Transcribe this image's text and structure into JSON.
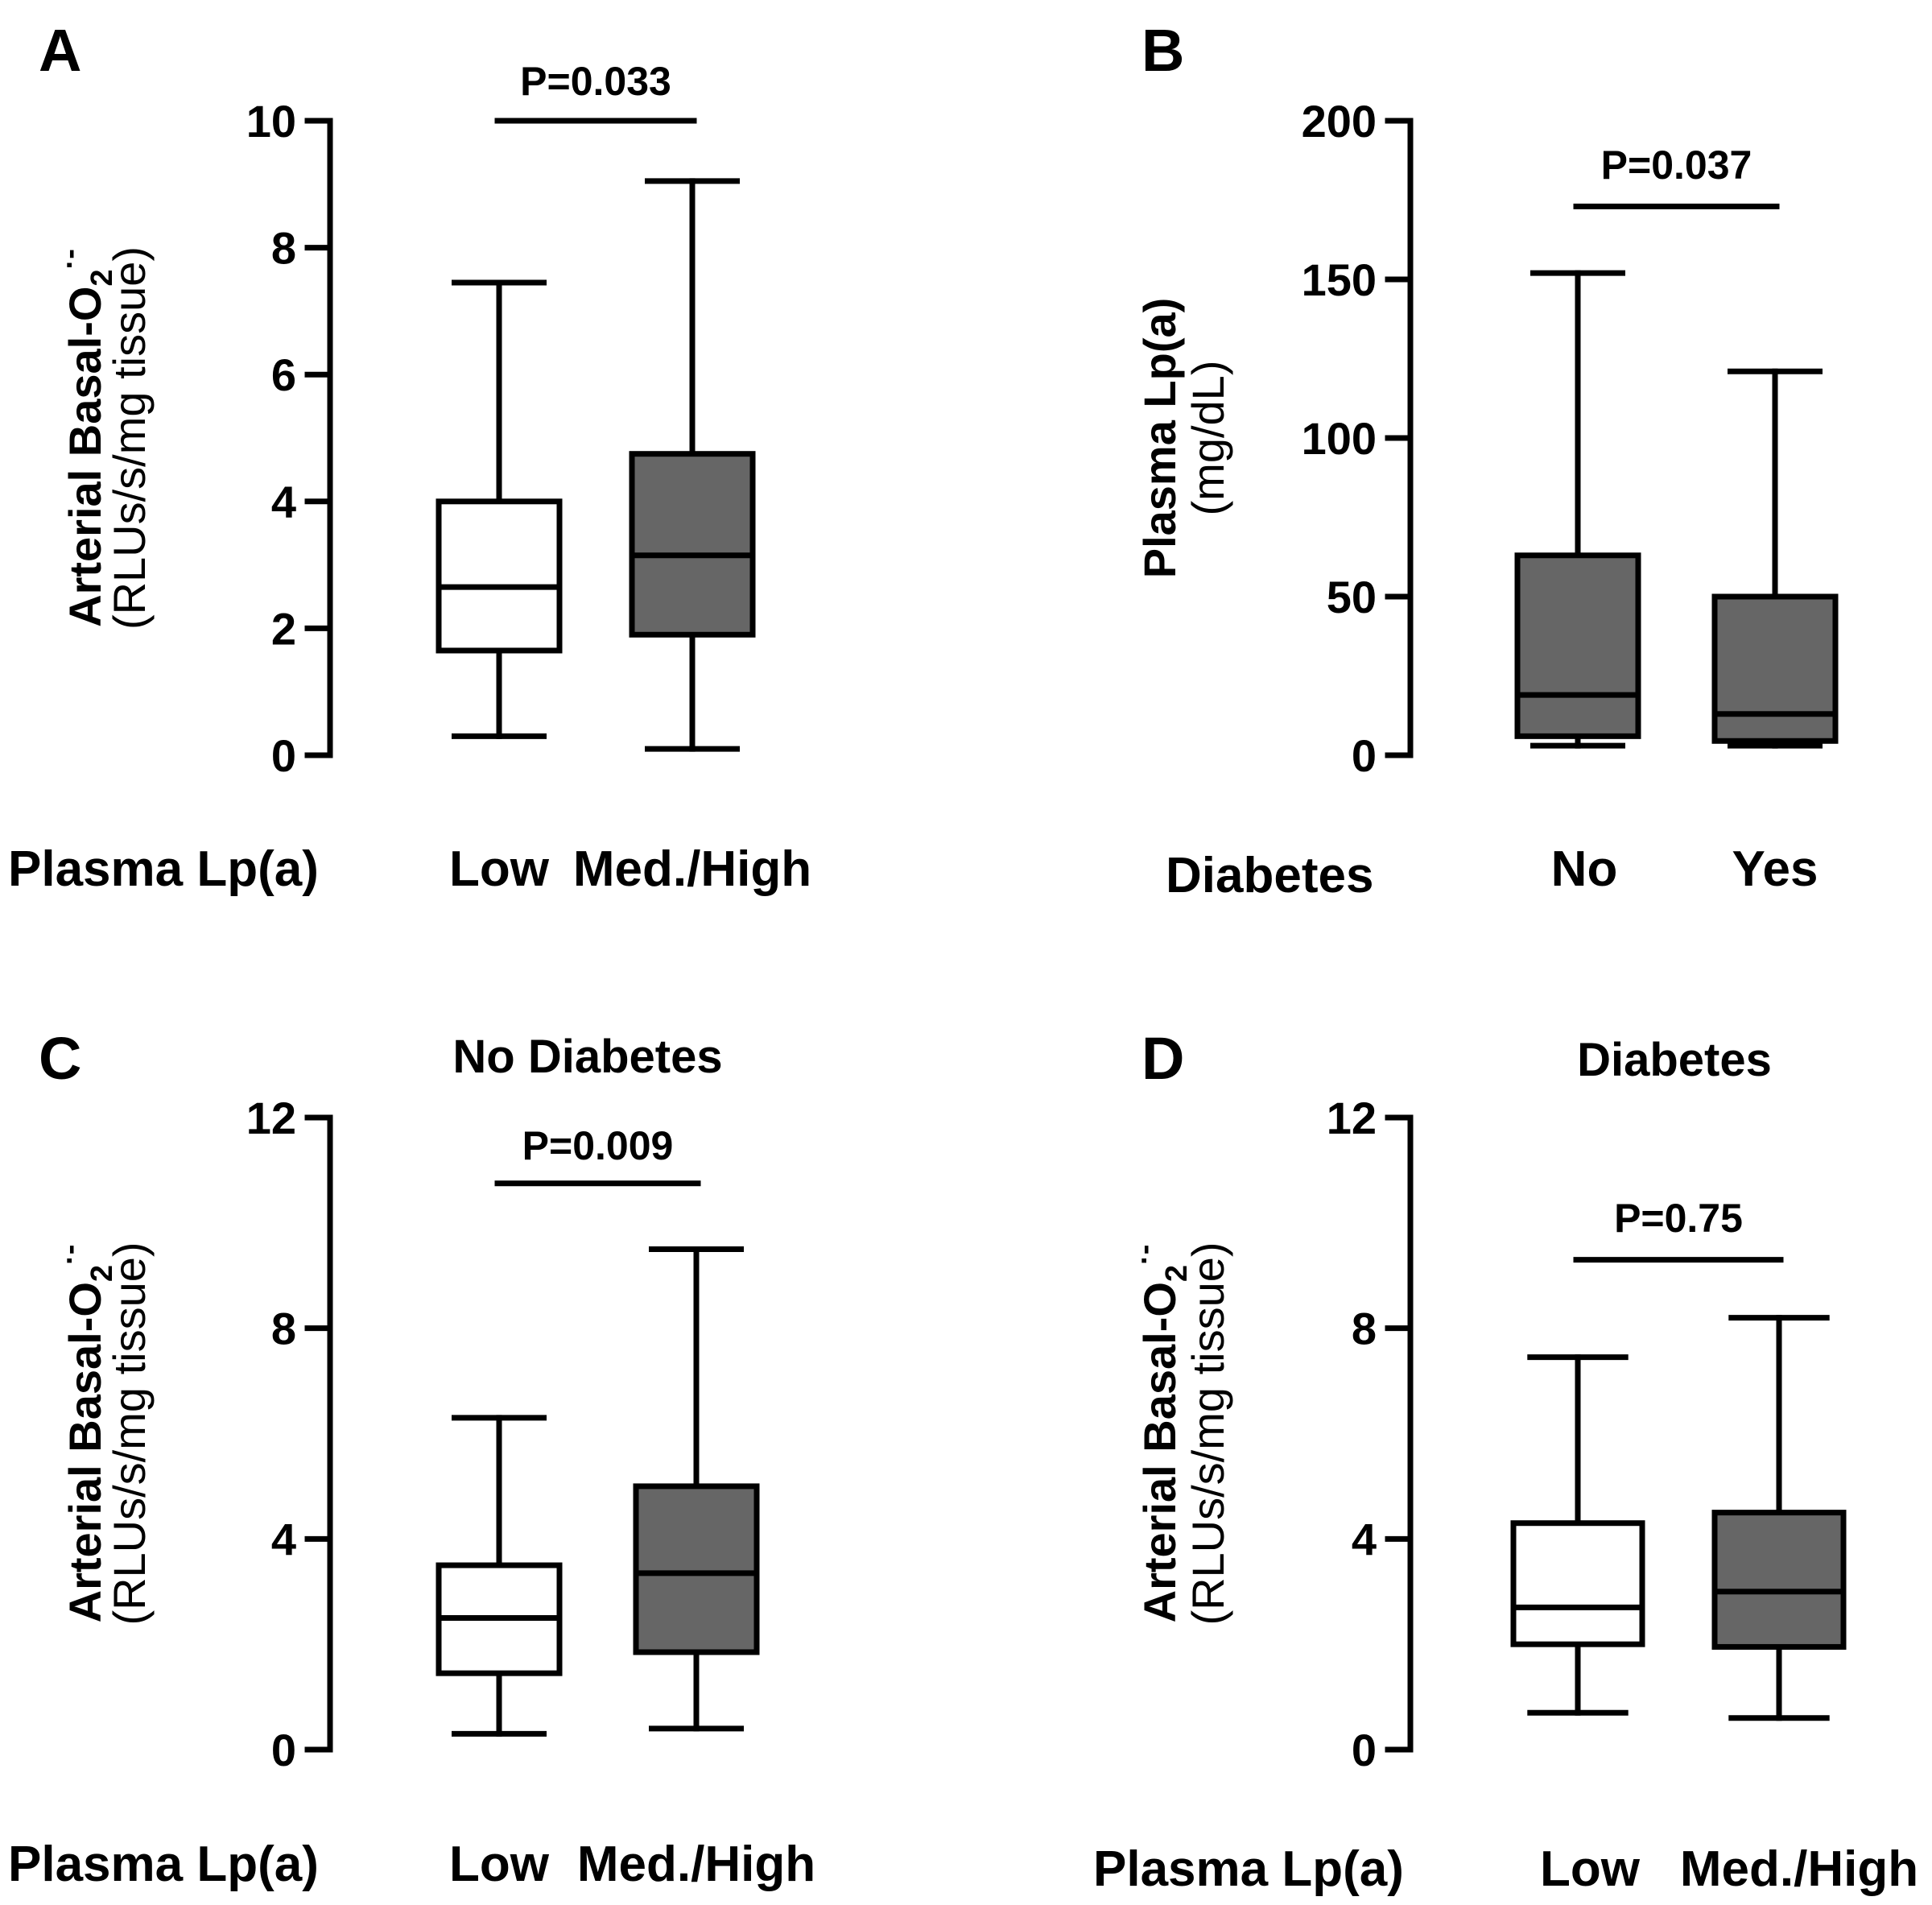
{
  "chart_data": [
    {
      "type": "box",
      "panel": "A",
      "title": "",
      "ylabel_main": "Arterial Basal-O",
      "ylabel_sub": "2",
      "ylabel_sup": "·-",
      "ylabel_units": "(RLUs/s/mg tissue)",
      "xlabel": "Plasma Lp(a)",
      "categories": [
        "Low",
        "Med./High"
      ],
      "ylim": [
        0,
        10
      ],
      "yticks": [
        "0",
        "2",
        "4",
        "6",
        "8",
        "10"
      ],
      "ytick_values": [
        0,
        2,
        4,
        6,
        8,
        10
      ],
      "series": [
        {
          "name": "Low",
          "min": 0.3,
          "q1": 1.65,
          "median": 2.65,
          "q3": 4.0,
          "max": 7.45,
          "fill": "#ffffff"
        },
        {
          "name": "Med./High",
          "min": 0.1,
          "q1": 1.9,
          "median": 3.15,
          "q3": 4.75,
          "max": 9.05,
          "fill": "#666666"
        }
      ],
      "p_value": "P=0.033",
      "p_bar_y": 10
    },
    {
      "type": "box",
      "panel": "B",
      "title": "",
      "ylabel_main": "Plasma Lp(a)",
      "ylabel_sub": "",
      "ylabel_sup": "",
      "ylabel_units": "(mg/dL)",
      "xlabel": "Diabetes",
      "categories": [
        "No",
        "Yes"
      ],
      "ylim": [
        0,
        200
      ],
      "yticks": [
        "0",
        "50",
        "100",
        "150",
        "200"
      ],
      "ytick_values": [
        0,
        50,
        100,
        150,
        200
      ],
      "series": [
        {
          "name": "No",
          "min": 3,
          "q1": 6,
          "median": 19,
          "q3": 63,
          "max": 152,
          "fill": "#666666"
        },
        {
          "name": "Yes",
          "min": 3,
          "q1": 4.5,
          "median": 13,
          "q3": 50,
          "max": 121,
          "fill": "#666666"
        }
      ],
      "p_value": "P=0.037",
      "p_bar_y": 173
    },
    {
      "type": "box",
      "panel": "C",
      "title": "No Diabetes",
      "ylabel_main": "Arterial Basal-O",
      "ylabel_sub": "2",
      "ylabel_sup": "·-",
      "ylabel_units": "(RLUs/s/mg tissue)",
      "xlabel": "Plasma Lp(a)",
      "categories": [
        "Low",
        "Med./High"
      ],
      "ylim": [
        0,
        12
      ],
      "yticks": [
        "0",
        "4",
        "8",
        "12"
      ],
      "ytick_values": [
        0,
        4,
        8,
        12
      ],
      "series": [
        {
          "name": "Low",
          "min": 0.3,
          "q1": 1.45,
          "median": 2.5,
          "q3": 3.5,
          "max": 6.3,
          "fill": "#ffffff"
        },
        {
          "name": "Med./High",
          "min": 0.4,
          "q1": 1.85,
          "median": 3.35,
          "q3": 5.0,
          "max": 9.5,
          "fill": "#666666"
        }
      ],
      "p_value": "P=0.009",
      "p_bar_y": 10.75
    },
    {
      "type": "box",
      "panel": "D",
      "title": "Diabetes",
      "ylabel_main": "Arterial Basal-O",
      "ylabel_sub": "2",
      "ylabel_sup": "·-",
      "ylabel_units": "(RLUs/s/mg tissue)",
      "xlabel": "Plasma Lp(a)",
      "categories": [
        "Low",
        "Med./High"
      ],
      "ylim": [
        0,
        12
      ],
      "yticks": [
        "0",
        "4",
        "8",
        "12"
      ],
      "ytick_values": [
        0,
        4,
        8,
        12
      ],
      "series": [
        {
          "name": "Low",
          "min": 0.7,
          "q1": 2.0,
          "median": 2.7,
          "q3": 4.3,
          "max": 7.45,
          "fill": "#ffffff"
        },
        {
          "name": "Med./High",
          "min": 0.6,
          "q1": 1.95,
          "median": 3.0,
          "q3": 4.5,
          "max": 8.2,
          "fill": "#666666"
        }
      ],
      "p_value": "P=0.75",
      "p_bar_y": 9.3
    }
  ]
}
